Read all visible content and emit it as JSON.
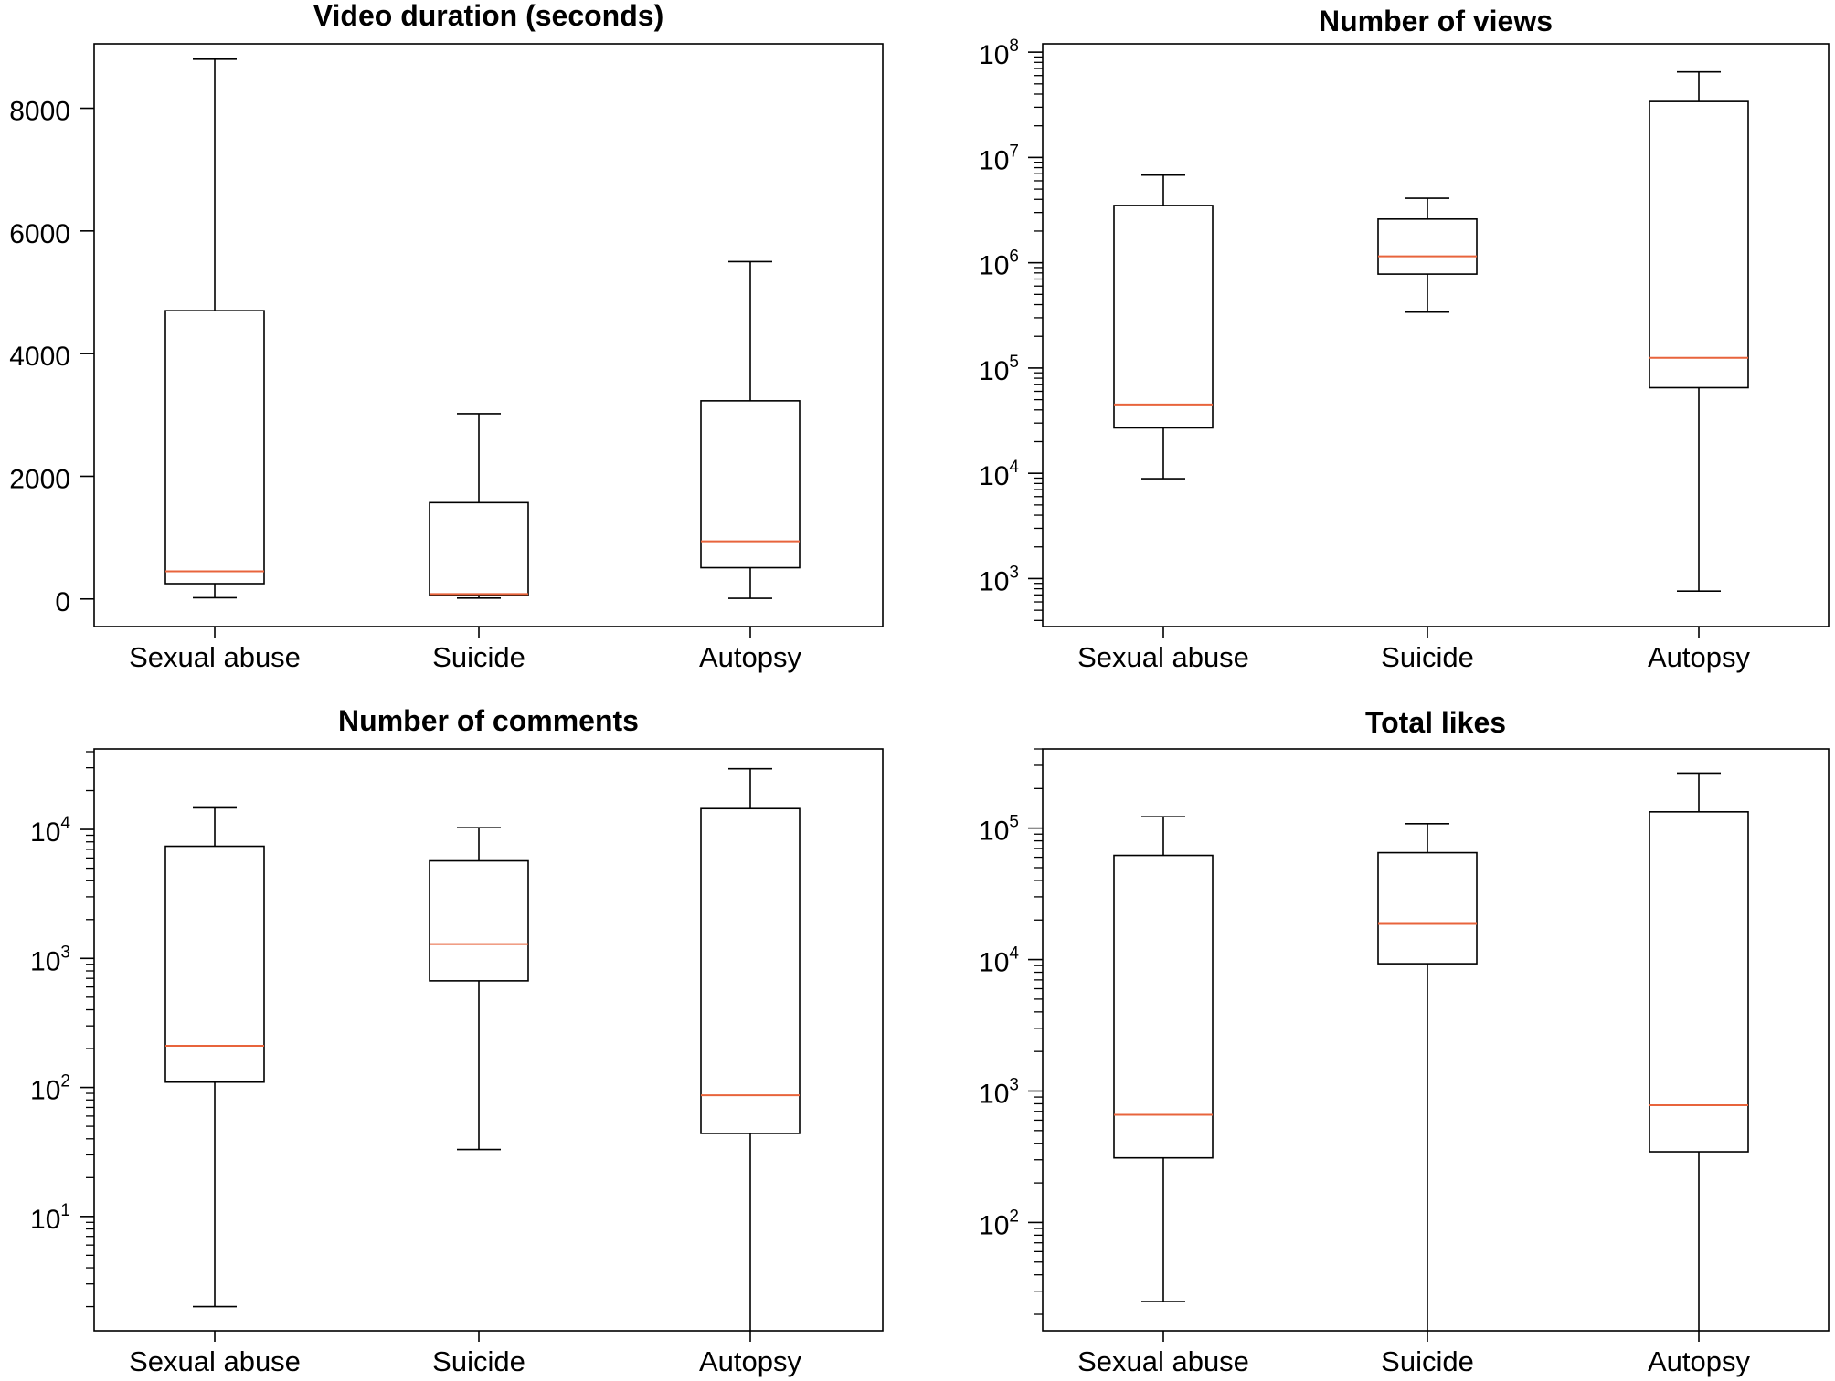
{
  "chart_data": [
    {
      "type": "box",
      "title": "Video duration (seconds)",
      "scale": "linear",
      "categories": [
        "Sexual abuse",
        "Suicide",
        "Autopsy"
      ],
      "ylim": [
        -450,
        9050
      ],
      "yticks": [
        0,
        2000,
        4000,
        6000,
        8000
      ],
      "ytick_labels": [
        "0",
        "2000",
        "4000",
        "6000",
        "8000"
      ],
      "boxes": [
        {
          "whisker_low": 20,
          "q1": 250,
          "median": 450,
          "q3": 4700,
          "whisker_high": 8800
        },
        {
          "whisker_low": 15,
          "q1": 60,
          "median": 80,
          "q3": 1570,
          "whisker_high": 3020
        },
        {
          "whisker_low": 10,
          "q1": 510,
          "median": 940,
          "q3": 3230,
          "whisker_high": 5500
        }
      ]
    },
    {
      "type": "box",
      "title": "Number of views",
      "scale": "log",
      "categories": [
        "Sexual abuse",
        "Suicide",
        "Autopsy"
      ],
      "ylim": [
        350,
        120000000
      ],
      "yticks": [
        1000,
        10000,
        100000,
        1000000,
        10000000,
        100000000
      ],
      "ytick_labels": [
        {
          "base": "10",
          "exp": "3"
        },
        {
          "base": "10",
          "exp": "4"
        },
        {
          "base": "10",
          "exp": "5"
        },
        {
          "base": "10",
          "exp": "6"
        },
        {
          "base": "10",
          "exp": "7"
        },
        {
          "base": "10",
          "exp": "8"
        }
      ],
      "boxes": [
        {
          "whisker_low": 8900,
          "q1": 27000,
          "median": 45000,
          "q3": 3500000,
          "whisker_high": 6800000
        },
        {
          "whisker_low": 340000,
          "q1": 780000,
          "median": 1150000,
          "q3": 2600000,
          "whisker_high": 4100000
        },
        {
          "whisker_low": 760,
          "q1": 65000,
          "median": 125000,
          "q3": 34000000,
          "whisker_high": 65000000
        }
      ]
    },
    {
      "type": "box",
      "title": "Number of comments",
      "scale": "log",
      "categories": [
        "Sexual abuse",
        "Suicide",
        "Autopsy"
      ],
      "ylim": [
        1.3,
        42000
      ],
      "yticks": [
        10,
        100,
        1000,
        10000
      ],
      "ytick_labels": [
        {
          "base": "10",
          "exp": "1"
        },
        {
          "base": "10",
          "exp": "2"
        },
        {
          "base": "10",
          "exp": "3"
        },
        {
          "base": "10",
          "exp": "4"
        }
      ],
      "boxes": [
        {
          "whisker_low": 2,
          "q1": 110,
          "median": 210,
          "q3": 7400,
          "whisker_high": 14700
        },
        {
          "whisker_low": 33,
          "q1": 670,
          "median": 1290,
          "q3": 5700,
          "whisker_high": 10300
        },
        {
          "whisker_low": 1.3,
          "q1": 44,
          "median": 87,
          "q3": 14500,
          "whisker_high": 29500
        }
      ]
    },
    {
      "type": "box",
      "title": "Total likes",
      "scale": "log",
      "categories": [
        "Sexual abuse",
        "Suicide",
        "Autopsy"
      ],
      "ylim": [
        15,
        400000
      ],
      "yticks": [
        100,
        1000,
        10000,
        100000
      ],
      "ytick_labels": [
        {
          "base": "10",
          "exp": "2"
        },
        {
          "base": "10",
          "exp": "3"
        },
        {
          "base": "10",
          "exp": "4"
        },
        {
          "base": "10",
          "exp": "5"
        }
      ],
      "boxes": [
        {
          "whisker_low": 25,
          "q1": 310,
          "median": 660,
          "q3": 62000,
          "whisker_high": 122000
        },
        {
          "whisker_low": 15,
          "q1": 9300,
          "median": 18700,
          "q3": 65000,
          "whisker_high": 108000
        },
        {
          "whisker_low": 15,
          "q1": 345,
          "median": 780,
          "q3": 133000,
          "whisker_high": 262000
        }
      ]
    }
  ],
  "colors": {
    "median": "#e8643c",
    "line": "#000000"
  }
}
